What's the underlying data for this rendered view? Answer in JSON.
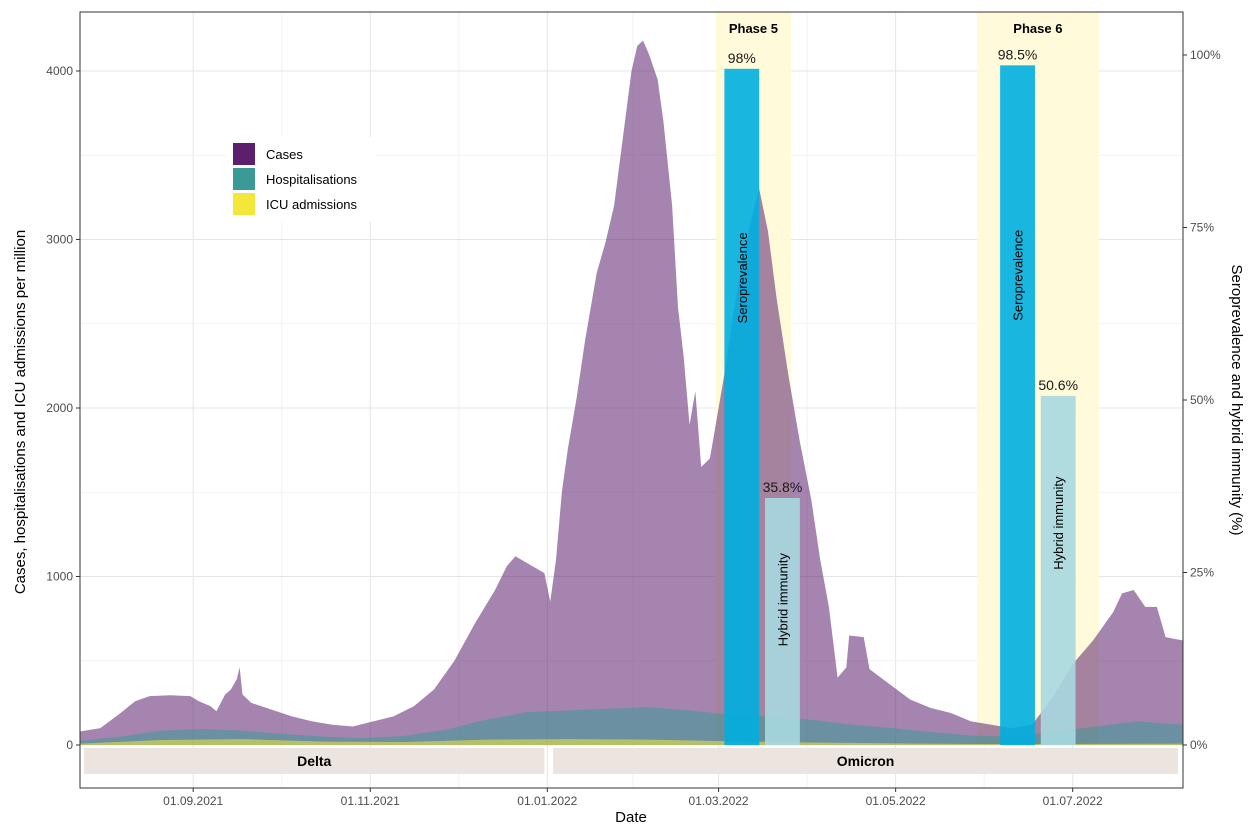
{
  "chart_data": {
    "type": "area",
    "xlabel": "Date",
    "ylabel": "Cases, hospitalisations and ICU admissions per million",
    "y2label": "Seroprevalence and hybrid immunity (%)",
    "x_range": [
      "2021-07-24",
      "2022-08-08"
    ],
    "y_range": [
      0,
      4350
    ],
    "y2_range": [
      0,
      1.0
    ],
    "x_ticks": [
      {
        "date": "2021-09-01",
        "label": "01.09.2021"
      },
      {
        "date": "2021-11-01",
        "label": "01.11.2021"
      },
      {
        "date": "2022-01-01",
        "label": "01.01.2022"
      },
      {
        "date": "2022-03-01",
        "label": "01.03.2022"
      },
      {
        "date": "2022-05-01",
        "label": "01.05.2022"
      },
      {
        "date": "2022-07-01",
        "label": "01.07.2022"
      }
    ],
    "y_ticks": [
      {
        "value": 0,
        "label": "0"
      },
      {
        "value": 1000,
        "label": "1000"
      },
      {
        "value": 2000,
        "label": "2000"
      },
      {
        "value": 3000,
        "label": "3000"
      },
      {
        "value": 4000,
        "label": "4000"
      }
    ],
    "y2_ticks": [
      {
        "value": 0,
        "label": "0%"
      },
      {
        "value": 0.25,
        "label": "25%"
      },
      {
        "value": 0.5,
        "label": "50%"
      },
      {
        "value": 0.75,
        "label": "75%"
      },
      {
        "value": 1.0,
        "label": "100%"
      }
    ],
    "legend": {
      "position": "top-left",
      "entries": [
        {
          "name": "Cases",
          "color": "#5b1f6e"
        },
        {
          "name": "Hospitalisations",
          "color": "#3a9a96"
        },
        {
          "name": "ICU admissions",
          "color": "#f5e63a"
        }
      ]
    },
    "series": [
      {
        "name": "Cases",
        "color": "#5b1f6e",
        "opacity": 0.55,
        "points": [
          [
            "2021-07-24",
            80
          ],
          [
            "2021-07-31",
            100
          ],
          [
            "2021-08-07",
            190
          ],
          [
            "2021-08-12",
            260
          ],
          [
            "2021-08-17",
            290
          ],
          [
            "2021-08-24",
            295
          ],
          [
            "2021-08-31",
            290
          ],
          [
            "2021-09-03",
            260
          ],
          [
            "2021-09-07",
            230
          ],
          [
            "2021-09-09",
            200
          ],
          [
            "2021-09-12",
            300
          ],
          [
            "2021-09-14",
            330
          ],
          [
            "2021-09-16",
            390
          ],
          [
            "2021-09-17",
            460
          ],
          [
            "2021-09-18",
            300
          ],
          [
            "2021-09-21",
            250
          ],
          [
            "2021-09-28",
            210
          ],
          [
            "2021-10-05",
            170
          ],
          [
            "2021-10-12",
            140
          ],
          [
            "2021-10-19",
            120
          ],
          [
            "2021-10-26",
            110
          ],
          [
            "2021-11-02",
            140
          ],
          [
            "2021-11-09",
            170
          ],
          [
            "2021-11-16",
            230
          ],
          [
            "2021-11-23",
            330
          ],
          [
            "2021-11-30",
            500
          ],
          [
            "2021-12-07",
            720
          ],
          [
            "2021-12-14",
            920
          ],
          [
            "2021-12-18",
            1060
          ],
          [
            "2021-12-21",
            1120
          ],
          [
            "2021-12-25",
            1080
          ],
          [
            "2021-12-29",
            1040
          ],
          [
            "2021-12-31",
            1020
          ],
          [
            "2022-01-02",
            850
          ],
          [
            "2022-01-04",
            1100
          ],
          [
            "2022-01-06",
            1500
          ],
          [
            "2022-01-08",
            1750
          ],
          [
            "2022-01-11",
            2050
          ],
          [
            "2022-01-14",
            2400
          ],
          [
            "2022-01-18",
            2800
          ],
          [
            "2022-01-21",
            2980
          ],
          [
            "2022-01-24",
            3200
          ],
          [
            "2022-01-27",
            3600
          ],
          [
            "2022-01-30",
            4000
          ],
          [
            "2022-02-01",
            4150
          ],
          [
            "2022-02-03",
            4180
          ],
          [
            "2022-02-05",
            4100
          ],
          [
            "2022-02-08",
            3950
          ],
          [
            "2022-02-10",
            3700
          ],
          [
            "2022-02-13",
            3200
          ],
          [
            "2022-02-15",
            2600
          ],
          [
            "2022-02-17",
            2300
          ],
          [
            "2022-02-19",
            1900
          ],
          [
            "2022-02-21",
            2100
          ],
          [
            "2022-02-23",
            1650
          ],
          [
            "2022-02-26",
            1700
          ],
          [
            "2022-02-28",
            1900
          ],
          [
            "2022-03-03",
            2200
          ],
          [
            "2022-03-06",
            2550
          ],
          [
            "2022-03-09",
            2850
          ],
          [
            "2022-03-12",
            3100
          ],
          [
            "2022-03-15",
            3300
          ],
          [
            "2022-03-18",
            3050
          ],
          [
            "2022-03-21",
            2650
          ],
          [
            "2022-03-25",
            2200
          ],
          [
            "2022-03-29",
            1800
          ],
          [
            "2022-04-02",
            1450
          ],
          [
            "2022-04-05",
            1100
          ],
          [
            "2022-04-08",
            820
          ],
          [
            "2022-04-11",
            400
          ],
          [
            "2022-04-14",
            460
          ],
          [
            "2022-04-15",
            650
          ],
          [
            "2022-04-20",
            640
          ],
          [
            "2022-04-22",
            450
          ],
          [
            "2022-04-29",
            360
          ],
          [
            "2022-05-06",
            270
          ],
          [
            "2022-05-13",
            220
          ],
          [
            "2022-05-20",
            190
          ],
          [
            "2022-05-27",
            140
          ],
          [
            "2022-06-03",
            120
          ],
          [
            "2022-06-10",
            100
          ],
          [
            "2022-06-17",
            120
          ],
          [
            "2022-06-24",
            280
          ],
          [
            "2022-07-01",
            480
          ],
          [
            "2022-07-08",
            620
          ],
          [
            "2022-07-15",
            790
          ],
          [
            "2022-07-18",
            900
          ],
          [
            "2022-07-22",
            920
          ],
          [
            "2022-07-26",
            820
          ],
          [
            "2022-07-30",
            820
          ],
          [
            "2022-08-02",
            640
          ],
          [
            "2022-08-08",
            620
          ]
        ]
      },
      {
        "name": "Hospitalisations",
        "color": "#3a9a96",
        "opacity": 0.55,
        "points": [
          [
            "2021-07-24",
            25
          ],
          [
            "2021-08-07",
            50
          ],
          [
            "2021-08-21",
            85
          ],
          [
            "2021-09-04",
            95
          ],
          [
            "2021-09-18",
            85
          ],
          [
            "2021-10-02",
            65
          ],
          [
            "2021-10-16",
            50
          ],
          [
            "2021-10-30",
            40
          ],
          [
            "2021-11-13",
            55
          ],
          [
            "2021-11-27",
            90
          ],
          [
            "2021-12-11",
            150
          ],
          [
            "2021-12-25",
            195
          ],
          [
            "2022-01-08",
            205
          ],
          [
            "2022-01-22",
            215
          ],
          [
            "2022-02-05",
            225
          ],
          [
            "2022-02-19",
            205
          ],
          [
            "2022-03-05",
            180
          ],
          [
            "2022-03-19",
            170
          ],
          [
            "2022-04-02",
            150
          ],
          [
            "2022-04-16",
            120
          ],
          [
            "2022-04-30",
            100
          ],
          [
            "2022-05-14",
            75
          ],
          [
            "2022-05-28",
            55
          ],
          [
            "2022-06-11",
            50
          ],
          [
            "2022-06-25",
            80
          ],
          [
            "2022-07-09",
            110
          ],
          [
            "2022-07-23",
            140
          ],
          [
            "2022-08-08",
            120
          ]
        ]
      },
      {
        "name": "ICU admissions",
        "color": "#f5e63a",
        "opacity": 0.55,
        "points": [
          [
            "2021-07-24",
            8
          ],
          [
            "2021-08-21",
            30
          ],
          [
            "2021-09-18",
            35
          ],
          [
            "2021-10-16",
            20
          ],
          [
            "2021-11-13",
            18
          ],
          [
            "2021-12-11",
            32
          ],
          [
            "2022-01-08",
            35
          ],
          [
            "2022-02-05",
            32
          ],
          [
            "2022-03-05",
            22
          ],
          [
            "2022-04-02",
            15
          ],
          [
            "2022-04-30",
            10
          ],
          [
            "2022-05-28",
            6
          ],
          [
            "2022-06-25",
            6
          ],
          [
            "2022-08-08",
            8
          ]
        ]
      }
    ],
    "phases": [
      {
        "label": "Phase 5",
        "start": "2022-02-28",
        "end": "2022-03-26"
      },
      {
        "label": "Phase 6",
        "start": "2022-05-29",
        "end": "2022-07-10"
      }
    ],
    "bars": [
      {
        "label": "Seroprevalence",
        "start": "2022-03-03",
        "end": "2022-03-15",
        "value": 0.98,
        "value_label": "98%",
        "color": "#00aee0"
      },
      {
        "label": "Hybrid immunity",
        "start": "2022-03-17",
        "end": "2022-03-29",
        "value": 0.358,
        "value_label": "35.8%",
        "color": "#a7d8e0"
      },
      {
        "label": "Seroprevalence",
        "start": "2022-06-06",
        "end": "2022-06-18",
        "value": 0.985,
        "value_label": "98.5%",
        "color": "#00aee0"
      },
      {
        "label": "Hybrid immunity",
        "start": "2022-06-20",
        "end": "2022-07-02",
        "value": 0.506,
        "value_label": "50.6%",
        "color": "#a7d8e0"
      }
    ],
    "variants": [
      {
        "label": "Delta",
        "start": "2021-07-24",
        "end": "2021-12-31"
      },
      {
        "label": "Omicron",
        "start": "2022-01-03",
        "end": "2022-08-08"
      }
    ],
    "grid": true
  }
}
